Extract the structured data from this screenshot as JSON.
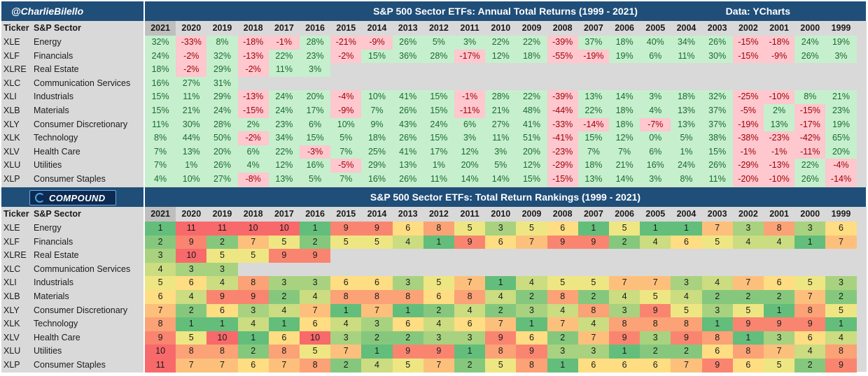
{
  "chart_data": [
    {
      "type": "table",
      "title": "S&P 500 Sector ETFs: Annual Total Returns (1999 - 2021)",
      "credit": "@CharlieBilello",
      "source": "Data: YCharts",
      "columns": [
        "Ticker",
        "S&P Sector",
        "2021",
        "2020",
        "2019",
        "2018",
        "2017",
        "2016",
        "2015",
        "2014",
        "2013",
        "2012",
        "2011",
        "2010",
        "2009",
        "2008",
        "2007",
        "2006",
        "2005",
        "2004",
        "2003",
        "2002",
        "2001",
        "2000",
        "1999"
      ],
      "rows": [
        {
          "ticker": "XLE",
          "sector": "Energy",
          "values": [
            "32%",
            "-33%",
            "8%",
            "-18%",
            "-1%",
            "28%",
            "-21%",
            "-9%",
            "26%",
            "5%",
            "3%",
            "22%",
            "22%",
            "-39%",
            "37%",
            "18%",
            "40%",
            "34%",
            "26%",
            "-15%",
            "-18%",
            "24%",
            "19%"
          ]
        },
        {
          "ticker": "XLF",
          "sector": "Financials",
          "values": [
            "24%",
            "-2%",
            "32%",
            "-13%",
            "22%",
            "23%",
            "-2%",
            "15%",
            "36%",
            "28%",
            "-17%",
            "12%",
            "18%",
            "-55%",
            "-19%",
            "19%",
            "6%",
            "11%",
            "30%",
            "-15%",
            "-9%",
            "26%",
            "3%"
          ]
        },
        {
          "ticker": "XLRE",
          "sector": "Real Estate",
          "values": [
            "18%",
            "-2%",
            "29%",
            "-2%",
            "11%",
            "3%"
          ]
        },
        {
          "ticker": "XLC",
          "sector": "Communication Services",
          "values": [
            "16%",
            "27%",
            "31%"
          ]
        },
        {
          "ticker": "XLI",
          "sector": "Industrials",
          "values": [
            "15%",
            "11%",
            "29%",
            "-13%",
            "24%",
            "20%",
            "-4%",
            "10%",
            "41%",
            "15%",
            "-1%",
            "28%",
            "22%",
            "-39%",
            "13%",
            "14%",
            "3%",
            "18%",
            "32%",
            "-25%",
            "-10%",
            "8%",
            "21%"
          ]
        },
        {
          "ticker": "XLB",
          "sector": "Materials",
          "values": [
            "15%",
            "21%",
            "24%",
            "-15%",
            "24%",
            "17%",
            "-9%",
            "7%",
            "26%",
            "15%",
            "-11%",
            "21%",
            "48%",
            "-44%",
            "22%",
            "18%",
            "4%",
            "13%",
            "37%",
            "-5%",
            "2%",
            "-15%",
            "23%"
          ]
        },
        {
          "ticker": "XLY",
          "sector": "Consumer Discretionary",
          "values": [
            "11%",
            "30%",
            "28%",
            "2%",
            "23%",
            "6%",
            "10%",
            "9%",
            "43%",
            "24%",
            "6%",
            "27%",
            "41%",
            "-33%",
            "-14%",
            "18%",
            "-7%",
            "13%",
            "37%",
            "-19%",
            "13%",
            "-17%",
            "19%"
          ]
        },
        {
          "ticker": "XLK",
          "sector": "Technology",
          "values": [
            "8%",
            "44%",
            "50%",
            "-2%",
            "34%",
            "15%",
            "5%",
            "18%",
            "26%",
            "15%",
            "3%",
            "11%",
            "51%",
            "-41%",
            "15%",
            "12%",
            "0%",
            "5%",
            "38%",
            "-38%",
            "-23%",
            "-42%",
            "65%"
          ]
        },
        {
          "ticker": "XLV",
          "sector": "Health Care",
          "values": [
            "7%",
            "13%",
            "20%",
            "6%",
            "22%",
            "-3%",
            "7%",
            "25%",
            "41%",
            "17%",
            "12%",
            "3%",
            "20%",
            "-23%",
            "7%",
            "7%",
            "6%",
            "1%",
            "15%",
            "-1%",
            "-1%",
            "-11%",
            "20%"
          ]
        },
        {
          "ticker": "XLU",
          "sector": "Utilities",
          "values": [
            "7%",
            "1%",
            "26%",
            "4%",
            "12%",
            "16%",
            "-5%",
            "29%",
            "13%",
            "1%",
            "20%",
            "5%",
            "12%",
            "-29%",
            "18%",
            "21%",
            "16%",
            "24%",
            "26%",
            "-29%",
            "-13%",
            "22%",
            "-4%"
          ]
        },
        {
          "ticker": "XLP",
          "sector": "Consumer Staples",
          "values": [
            "4%",
            "10%",
            "27%",
            "-8%",
            "13%",
            "5%",
            "7%",
            "16%",
            "26%",
            "11%",
            "14%",
            "14%",
            "15%",
            "-15%",
            "13%",
            "14%",
            "3%",
            "8%",
            "11%",
            "-20%",
            "-10%",
            "26%",
            "-14%"
          ]
        }
      ]
    },
    {
      "type": "table",
      "title": "S&P 500 Sector ETFs: Total Return Rankings (1999 - 2021)",
      "logo_text": "COMPOUND",
      "columns": [
        "Ticker",
        "S&P Sector",
        "2021",
        "2020",
        "2019",
        "2018",
        "2017",
        "2016",
        "2015",
        "2014",
        "2013",
        "2012",
        "2011",
        "2010",
        "2009",
        "2008",
        "2007",
        "2006",
        "2005",
        "2004",
        "2003",
        "2002",
        "2001",
        "2000",
        "1999"
      ],
      "rows": [
        {
          "ticker": "XLE",
          "sector": "Energy",
          "values": [
            "1",
            "11",
            "11",
            "10",
            "10",
            "1",
            "9",
            "9",
            "6",
            "8",
            "5",
            "3",
            "5",
            "6",
            "1",
            "5",
            "1",
            "1",
            "7",
            "3",
            "8",
            "3",
            "6"
          ]
        },
        {
          "ticker": "XLF",
          "sector": "Financials",
          "values": [
            "2",
            "9",
            "2",
            "7",
            "5",
            "2",
            "5",
            "5",
            "4",
            "1",
            "9",
            "6",
            "7",
            "9",
            "9",
            "2",
            "4",
            "6",
            "5",
            "4",
            "4",
            "1",
            "7"
          ]
        },
        {
          "ticker": "XLRE",
          "sector": "Real Estate",
          "values": [
            "3",
            "10",
            "5",
            "5",
            "9",
            "9"
          ]
        },
        {
          "ticker": "XLC",
          "sector": "Communication Services",
          "values": [
            "4",
            "3",
            "3"
          ]
        },
        {
          "ticker": "XLI",
          "sector": "Industrials",
          "values": [
            "5",
            "6",
            "4",
            "8",
            "3",
            "3",
            "6",
            "6",
            "3",
            "5",
            "7",
            "1",
            "4",
            "5",
            "5",
            "7",
            "7",
            "3",
            "4",
            "7",
            "6",
            "5",
            "3"
          ]
        },
        {
          "ticker": "XLB",
          "sector": "Materials",
          "values": [
            "6",
            "4",
            "9",
            "9",
            "2",
            "4",
            "8",
            "8",
            "8",
            "6",
            "8",
            "4",
            "2",
            "8",
            "2",
            "4",
            "5",
            "4",
            "2",
            "2",
            "2",
            "7",
            "2"
          ]
        },
        {
          "ticker": "XLY",
          "sector": "Consumer Discretionary",
          "values": [
            "7",
            "2",
            "6",
            "3",
            "4",
            "7",
            "1",
            "7",
            "1",
            "2",
            "4",
            "2",
            "3",
            "4",
            "8",
            "3",
            "9",
            "5",
            "3",
            "5",
            "1",
            "8",
            "5"
          ]
        },
        {
          "ticker": "XLK",
          "sector": "Technology",
          "values": [
            "8",
            "1",
            "1",
            "4",
            "1",
            "6",
            "4",
            "3",
            "6",
            "4",
            "6",
            "7",
            "1",
            "7",
            "4",
            "8",
            "8",
            "8",
            "1",
            "9",
            "9",
            "9",
            "1"
          ]
        },
        {
          "ticker": "XLV",
          "sector": "Health Care",
          "values": [
            "9",
            "5",
            "10",
            "1",
            "6",
            "10",
            "3",
            "2",
            "2",
            "3",
            "3",
            "9",
            "6",
            "2",
            "7",
            "9",
            "3",
            "9",
            "8",
            "1",
            "3",
            "6",
            "4"
          ]
        },
        {
          "ticker": "XLU",
          "sector": "Utilities",
          "values": [
            "10",
            "8",
            "8",
            "2",
            "8",
            "5",
            "7",
            "1",
            "9",
            "9",
            "1",
            "8",
            "9",
            "3",
            "3",
            "1",
            "2",
            "2",
            "6",
            "8",
            "7",
            "4",
            "8"
          ]
        },
        {
          "ticker": "XLP",
          "sector": "Consumer Staples",
          "values": [
            "11",
            "7",
            "7",
            "6",
            "7",
            "8",
            "2",
            "4",
            "5",
            "7",
            "2",
            "5",
            "8",
            "1",
            "6",
            "6",
            "6",
            "7",
            "9",
            "6",
            "5",
            "2",
            "9"
          ]
        }
      ]
    }
  ],
  "colors": {
    "header_blue": "#1f4e79",
    "positive_green": "#c6efce",
    "negative_red": "#ffc7ce",
    "gray_row": "#d9d9d9",
    "highlight_2021": "#bfbfbf",
    "rank_scale": [
      "#63be7b",
      "#85c87d",
      "#a8d27f",
      "#cbdc81",
      "#eee683",
      "#ffdd82",
      "#fdc07c",
      "#fba276",
      "#f98570",
      "#f8696b",
      "#f8696b"
    ]
  }
}
